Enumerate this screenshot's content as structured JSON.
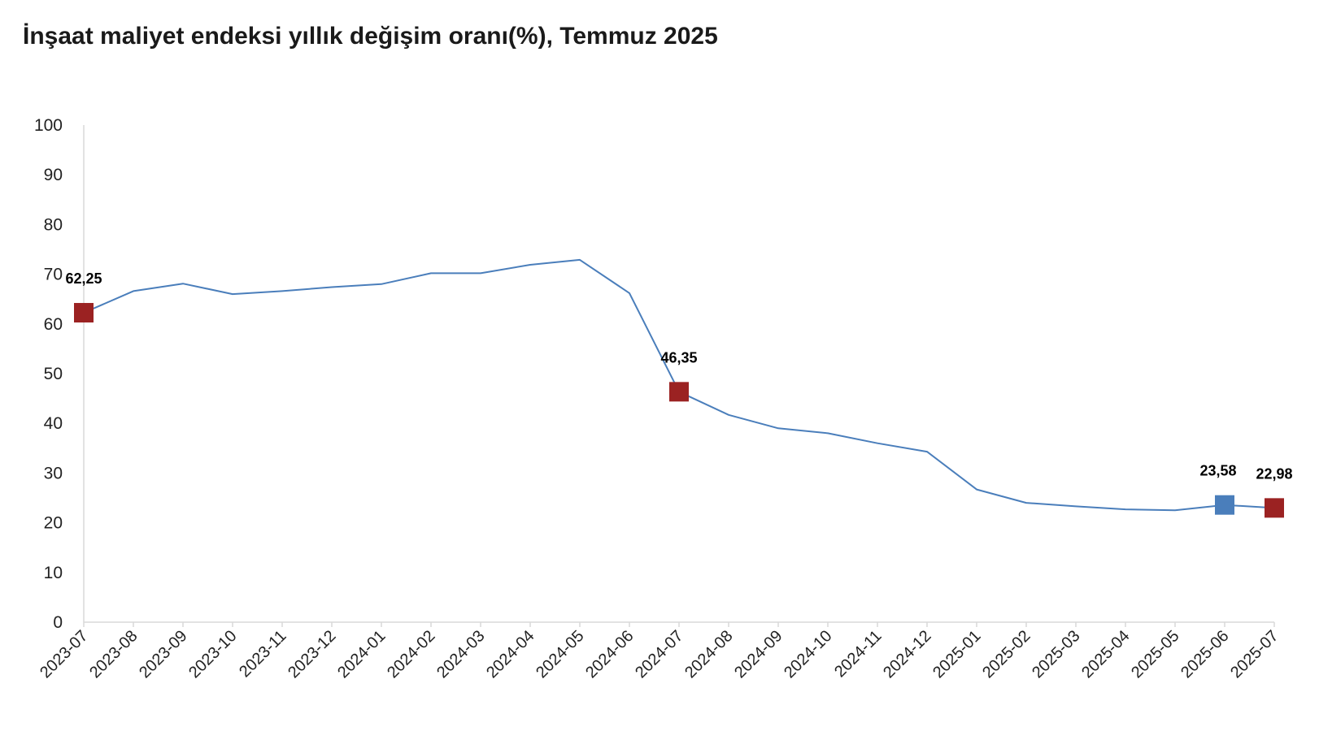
{
  "chart_data": {
    "type": "line",
    "title": "İnşaat maliyet endeksi yıllık değişim oranı(%), Temmuz 2025",
    "xlabel": "",
    "ylabel": "",
    "ylim": [
      0,
      100
    ],
    "yticks": [
      "0",
      "10",
      "20",
      "30",
      "40",
      "50",
      "60",
      "70",
      "80",
      "90",
      "100"
    ],
    "grid": false,
    "legend": "none",
    "categories": [
      "2023-07",
      "2023-08",
      "2023-09",
      "2023-10",
      "2023-11",
      "2023-12",
      "2024-01",
      "2024-02",
      "2024-03",
      "2024-04",
      "2024-05",
      "2024-06",
      "2024-07",
      "2024-08",
      "2024-09",
      "2024-10",
      "2024-11",
      "2024-12",
      "2025-01",
      "2025-02",
      "2025-03",
      "2025-04",
      "2025-05",
      "2025-06",
      "2025-07"
    ],
    "series": [
      {
        "values": [
          62.25,
          66.6,
          68.1,
          66.0,
          66.6,
          67.4,
          68.0,
          70.2,
          70.2,
          71.9,
          72.9,
          66.2,
          46.35,
          41.7,
          39.0,
          38.0,
          36.0,
          34.3,
          26.7,
          24.0,
          23.3,
          22.7,
          22.5,
          23.58,
          22.98
        ],
        "color": "#4a7ebb"
      }
    ],
    "highlighted_points": [
      {
        "index": 0,
        "label": "62,25",
        "color": "#9b2222"
      },
      {
        "index": 12,
        "label": "46,35",
        "color": "#9b2222"
      },
      {
        "index": 23,
        "label": "23,58",
        "color": "#4a7ebb"
      },
      {
        "index": 24,
        "label": "22,98",
        "color": "#9b2222"
      }
    ]
  }
}
